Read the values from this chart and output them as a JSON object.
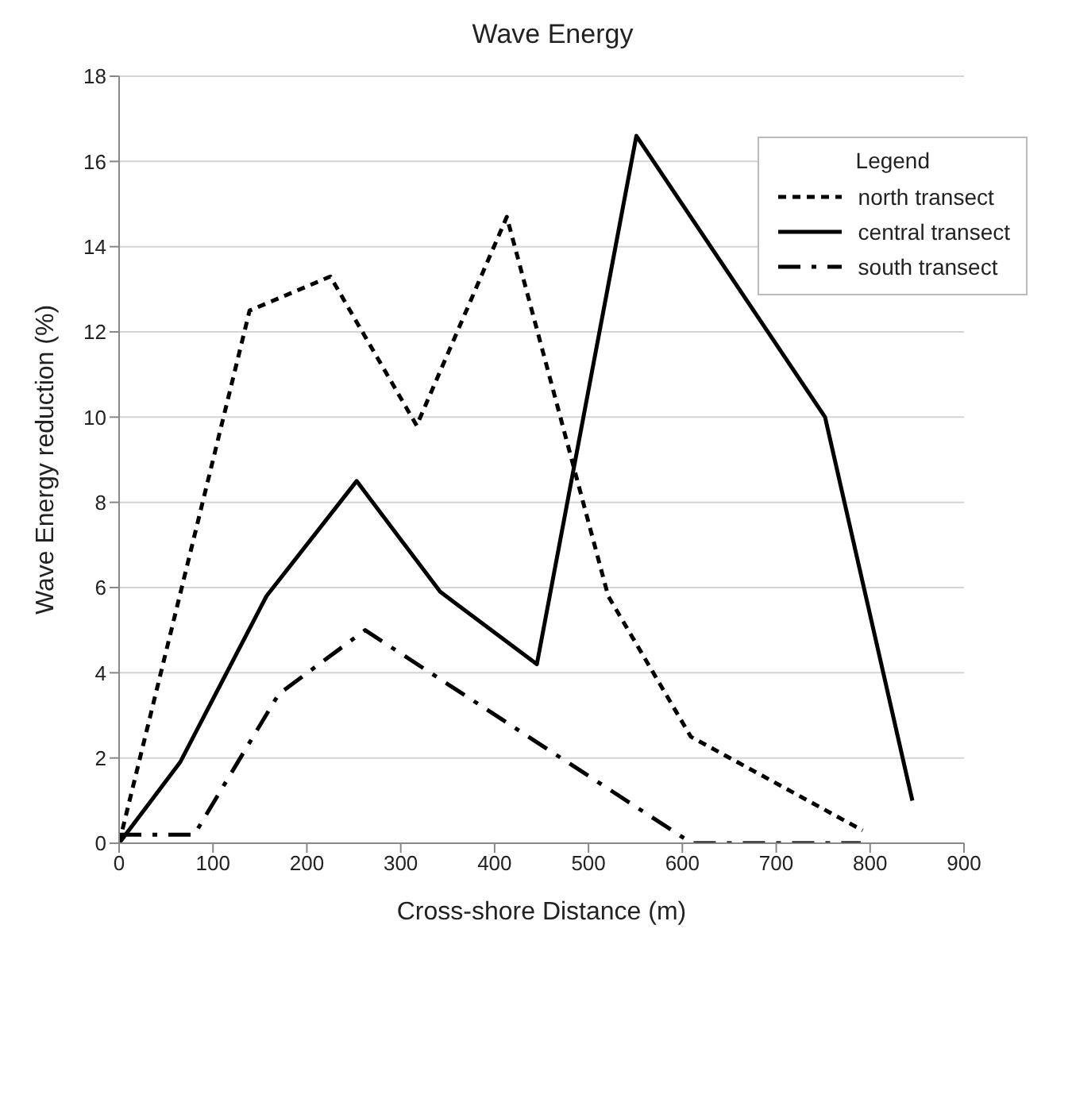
{
  "chart_data": {
    "type": "line",
    "title": "Wave Energy",
    "xlabel": "Cross-shore Distance (m)",
    "ylabel": "Wave Energy reduction (%)",
    "legend_title": "Legend",
    "legend": "top right",
    "grid": "y",
    "xlim": [
      0,
      900
    ],
    "xticks": [
      0,
      100,
      200,
      300,
      400,
      500,
      600,
      700,
      800,
      900
    ],
    "ylim": [
      0,
      18
    ],
    "yticks": [
      0,
      2,
      4,
      6,
      8,
      10,
      12,
      14,
      16,
      18
    ],
    "marker": "none",
    "series": [
      {
        "name": "north transect",
        "color": "#000000",
        "line_style": "dotted",
        "x": [
          0,
          139,
          225,
          317,
          413,
          521,
          609,
          792
        ],
        "values": [
          0,
          12.5,
          13.3,
          9.8,
          14.7,
          5.8,
          2.5,
          0.3
        ]
      },
      {
        "name": "central transect",
        "color": "#000000",
        "line_style": "solid",
        "x": [
          0,
          65,
          157,
          253,
          342,
          445,
          551,
          752,
          845
        ],
        "values": [
          0,
          1.9,
          5.8,
          8.5,
          5.9,
          4.2,
          16.6,
          10.0,
          1.0
        ]
      },
      {
        "name": "south transect",
        "color": "#000000",
        "line_style": "dashed",
        "x": [
          0,
          80,
          170,
          262,
          610,
          790
        ],
        "values": [
          0.2,
          0.2,
          3.5,
          5.0,
          0,
          0
        ]
      }
    ]
  }
}
